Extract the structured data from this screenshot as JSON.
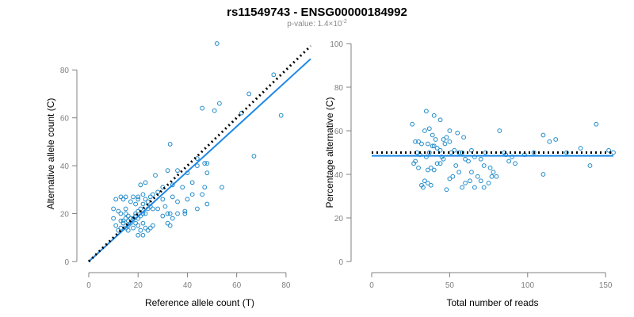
{
  "title": "rs11549743 - ENSG00000184992",
  "subtitle": {
    "prefix": "p-value: 1.4×10",
    "exponent": "-2"
  },
  "colors": {
    "points": "#1f8ac9",
    "fit_line": "#1e88e5",
    "reference_line": "#000000",
    "axis": "#808080"
  },
  "chart_data": [
    {
      "type": "scatter",
      "title": "",
      "xlabel": "Reference allele count (T)",
      "ylabel": "Alternative allele count (C)",
      "xlim": [
        0,
        90
      ],
      "ylim": [
        0,
        90
      ],
      "xticks": [
        0,
        20,
        40,
        60,
        80
      ],
      "yticks": [
        0,
        20,
        40,
        60,
        80
      ],
      "grid": false,
      "legend": "none",
      "reference_line": {
        "style": "dotted",
        "slope": 1,
        "intercept": 0,
        "x_range": [
          0,
          90
        ]
      },
      "fit_line": {
        "style": "solid",
        "slope": 0.94,
        "intercept": 0,
        "x_range": [
          0,
          90
        ]
      },
      "points": [
        [
          52,
          91
        ],
        [
          75,
          78
        ],
        [
          78,
          61
        ],
        [
          65,
          70
        ],
        [
          53,
          66
        ],
        [
          51,
          63
        ],
        [
          46,
          64
        ],
        [
          62,
          62
        ],
        [
          67,
          44
        ],
        [
          33,
          49
        ],
        [
          47,
          41
        ],
        [
          48,
          41
        ],
        [
          44,
          43
        ],
        [
          48,
          37
        ],
        [
          42,
          33
        ],
        [
          47,
          31
        ],
        [
          46,
          28
        ],
        [
          48,
          24
        ],
        [
          54,
          31
        ],
        [
          44,
          40
        ],
        [
          40,
          37
        ],
        [
          36,
          38
        ],
        [
          32,
          38
        ],
        [
          34,
          32
        ],
        [
          38,
          31
        ],
        [
          42,
          28
        ],
        [
          40,
          26
        ],
        [
          36,
          25
        ],
        [
          30,
          31
        ],
        [
          28,
          29
        ],
        [
          25,
          27
        ],
        [
          30,
          26
        ],
        [
          34,
          27
        ],
        [
          31,
          23
        ],
        [
          33,
          20
        ],
        [
          32,
          20
        ],
        [
          36,
          20
        ],
        [
          30,
          19
        ],
        [
          28,
          22
        ],
        [
          39,
          20
        ],
        [
          39,
          21
        ],
        [
          44,
          22
        ],
        [
          34,
          18
        ],
        [
          32,
          16
        ],
        [
          33,
          15
        ],
        [
          26,
          28
        ],
        [
          27,
          36
        ],
        [
          23,
          33
        ],
        [
          21,
          32
        ],
        [
          22,
          28
        ],
        [
          20,
          27
        ],
        [
          20,
          26
        ],
        [
          19,
          24
        ],
        [
          18,
          27
        ],
        [
          17,
          25
        ],
        [
          15,
          27
        ],
        [
          14,
          26
        ],
        [
          13,
          27
        ],
        [
          11,
          26
        ],
        [
          10,
          22
        ],
        [
          12,
          21
        ],
        [
          13,
          20
        ],
        [
          15,
          22
        ],
        [
          16,
          19
        ],
        [
          15,
          18
        ],
        [
          14,
          17
        ],
        [
          13,
          17
        ],
        [
          15,
          14
        ],
        [
          16,
          15
        ],
        [
          17,
          16
        ],
        [
          18,
          18
        ],
        [
          19,
          19
        ],
        [
          20,
          21
        ],
        [
          21,
          22
        ],
        [
          22,
          24
        ],
        [
          23,
          26
        ],
        [
          24,
          25
        ],
        [
          25,
          23
        ],
        [
          26,
          22
        ],
        [
          22,
          20
        ],
        [
          21,
          19
        ],
        [
          20,
          18
        ],
        [
          19,
          16
        ],
        [
          20,
          15
        ],
        [
          22,
          16
        ],
        [
          23,
          14
        ],
        [
          24,
          13
        ],
        [
          21,
          13
        ],
        [
          20,
          11
        ],
        [
          22,
          11
        ],
        [
          25,
          14
        ],
        [
          26,
          15
        ],
        [
          24,
          22
        ],
        [
          23,
          20
        ],
        [
          19,
          20
        ],
        [
          17,
          18
        ],
        [
          15,
          20
        ],
        [
          14,
          16
        ],
        [
          16,
          17
        ],
        [
          11,
          15
        ],
        [
          12,
          13
        ],
        [
          13,
          14
        ],
        [
          10,
          18
        ],
        [
          16,
          13
        ],
        [
          18,
          14
        ]
      ]
    },
    {
      "type": "scatter",
      "title": "",
      "xlabel": "Total number of reads",
      "ylabel": "Percentage alternative (C)",
      "xlim": [
        0,
        155
      ],
      "ylim": [
        0,
        100
      ],
      "xticks": [
        0,
        50,
        100,
        150
      ],
      "yticks": [
        0,
        20,
        40,
        60,
        80,
        100
      ],
      "grid": false,
      "legend": "none",
      "reference_line": {
        "style": "dotted",
        "y": 50,
        "x_range": [
          0,
          155
        ]
      },
      "fit_line": {
        "style": "solid",
        "y": 48.5,
        "x_range": [
          0,
          155
        ]
      },
      "points": [
        [
          35,
          69
        ],
        [
          40,
          67
        ],
        [
          44,
          65
        ],
        [
          26,
          63
        ],
        [
          50,
          60
        ],
        [
          34,
          60
        ],
        [
          37,
          61
        ],
        [
          30,
          55
        ],
        [
          28,
          55
        ],
        [
          32,
          54
        ],
        [
          36,
          54
        ],
        [
          40,
          53
        ],
        [
          46,
          56
        ],
        [
          48,
          57
        ],
        [
          47,
          54
        ],
        [
          50,
          55
        ],
        [
          44,
          51
        ],
        [
          42,
          52
        ],
        [
          53,
          51
        ],
        [
          56,
          50
        ],
        [
          58,
          50
        ],
        [
          60,
          47
        ],
        [
          64,
          51
        ],
        [
          62,
          46
        ],
        [
          66,
          48
        ],
        [
          70,
          47
        ],
        [
          73,
          50
        ],
        [
          72,
          44
        ],
        [
          76,
          43
        ],
        [
          78,
          41
        ],
        [
          80,
          39
        ],
        [
          82,
          60
        ],
        [
          86,
          49
        ],
        [
          88,
          46
        ],
        [
          92,
          45
        ],
        [
          75,
          36
        ],
        [
          70,
          37
        ],
        [
          66,
          34
        ],
        [
          72,
          34
        ],
        [
          68,
          39
        ],
        [
          64,
          41
        ],
        [
          60,
          36
        ],
        [
          58,
          34
        ],
        [
          56,
          41
        ],
        [
          52,
          39
        ],
        [
          50,
          38
        ],
        [
          48,
          33
        ],
        [
          46,
          47
        ],
        [
          44,
          45
        ],
        [
          42,
          45
        ],
        [
          40,
          42
        ],
        [
          38,
          43
        ],
        [
          36,
          42
        ],
        [
          34,
          37
        ],
        [
          33,
          34
        ],
        [
          32,
          35
        ],
        [
          30,
          43
        ],
        [
          28,
          46
        ],
        [
          27,
          45
        ],
        [
          29,
          50
        ],
        [
          31,
          49
        ],
        [
          35,
          48
        ],
        [
          37,
          50
        ],
        [
          39,
          53
        ],
        [
          45,
          48
        ],
        [
          51,
          50
        ],
        [
          54,
          44
        ],
        [
          63,
          37
        ],
        [
          77,
          39
        ],
        [
          110,
          58
        ],
        [
          114,
          55
        ],
        [
          118,
          56
        ],
        [
          110,
          40
        ],
        [
          125,
          50
        ],
        [
          134,
          52
        ],
        [
          140,
          44
        ],
        [
          144,
          63
        ],
        [
          152,
          51
        ],
        [
          155,
          50
        ],
        [
          98,
          49
        ],
        [
          104,
          50
        ],
        [
          85,
          50
        ],
        [
          90,
          48
        ],
        [
          36,
          36
        ],
        [
          38,
          35
        ],
        [
          41,
          56
        ],
        [
          55,
          59
        ],
        [
          59,
          57
        ],
        [
          39,
          58
        ]
      ]
    }
  ]
}
